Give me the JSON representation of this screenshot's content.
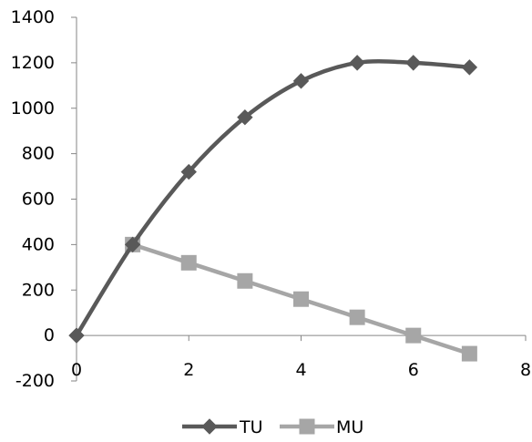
{
  "chart_data": {
    "type": "line",
    "title": "",
    "xlabel": "",
    "ylabel": "",
    "xlim": [
      0,
      8
    ],
    "ylim": [
      -200,
      1400
    ],
    "x_ticks": [
      0,
      2,
      4,
      6,
      8
    ],
    "y_ticks": [
      -200,
      0,
      200,
      400,
      600,
      800,
      1000,
      1200,
      1400
    ],
    "x_tick_labels": [
      "0",
      "2",
      "4",
      "6",
      "8"
    ],
    "y_tick_labels": [
      "-200",
      "0",
      "200",
      "400",
      "600",
      "800",
      "1000",
      "1200",
      "1400"
    ],
    "grid": false,
    "legend_position": "bottom",
    "smoothed": true,
    "series": [
      {
        "name": "TU",
        "color": "#595959",
        "marker": "diamond",
        "x": [
          0,
          1,
          2,
          3,
          4,
          5,
          6,
          7
        ],
        "y": [
          0,
          400,
          720,
          960,
          1120,
          1200,
          1200,
          1180
        ]
      },
      {
        "name": "MU",
        "color": "#a6a6a6",
        "marker": "square",
        "x": [
          1,
          2,
          3,
          4,
          5,
          6,
          7
        ],
        "y": [
          400,
          320,
          240,
          160,
          80,
          0,
          -80
        ]
      }
    ]
  }
}
